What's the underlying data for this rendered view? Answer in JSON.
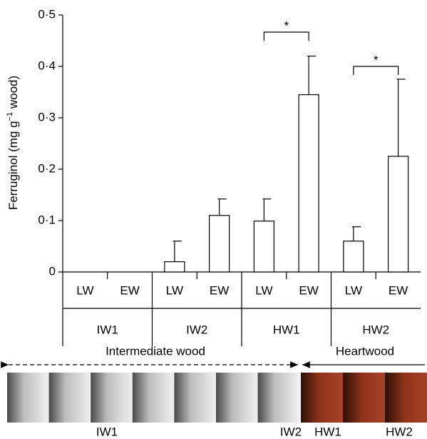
{
  "chart_data": {
    "type": "bar",
    "y_label": {
      "before": "Ferruginol (mg g",
      "superscript": "−1",
      "after": " wood)"
    },
    "categories": [
      "LW",
      "EW",
      "LW",
      "EW",
      "LW",
      "EW",
      "LW",
      "EW"
    ],
    "groups": [
      "IW1",
      "IW2",
      "HW1",
      "HW2"
    ],
    "values": [
      0,
      0,
      0.02,
      0.11,
      0.099,
      0.345,
      0.06,
      0.225
    ],
    "errors": [
      null,
      null,
      0.04,
      0.032,
      0.043,
      0.075,
      0.028,
      0.15
    ],
    "color": "#ffffff",
    "ylim": [
      0,
      0.5
    ],
    "yticks": [
      0,
      {
        "value": 0.1,
        "label": "0·1"
      },
      {
        "value": 0.2,
        "label": "0·2"
      },
      {
        "value": 0.3,
        "label": "0·3"
      },
      {
        "value": 0.4,
        "label": "0·4"
      },
      {
        "value": 0.5,
        "label": "0·5"
      }
    ],
    "annotations": [
      "*",
      "*"
    ]
  },
  "diagram": {
    "left_label": "Intermediate wood",
    "right_label": "Heartwood",
    "sample_labels": [
      "IW1",
      "IW2",
      "HW1",
      "HW2"
    ]
  }
}
